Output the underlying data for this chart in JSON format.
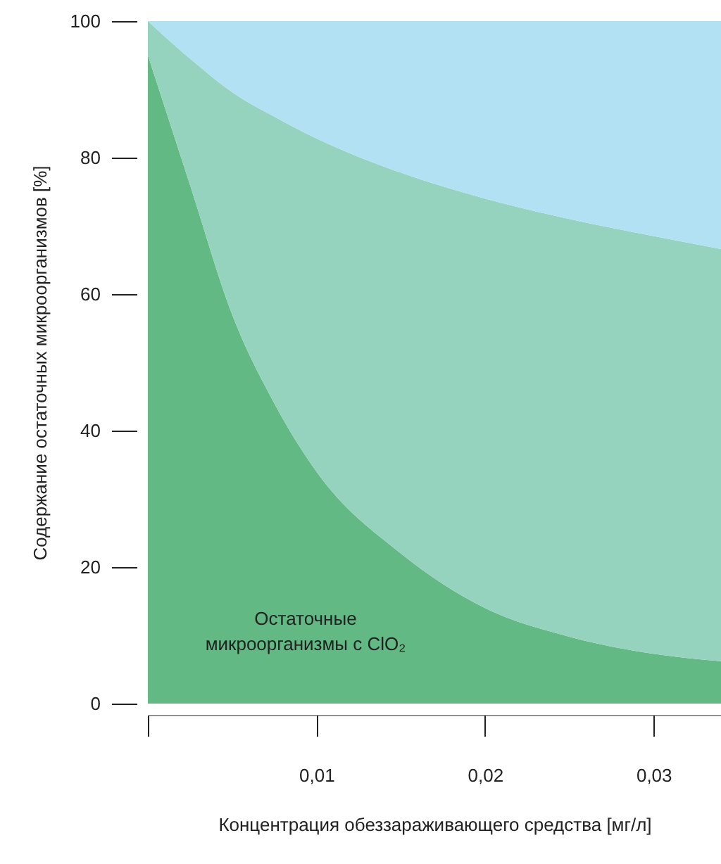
{
  "chart_data": {
    "type": "area",
    "stacked": true,
    "xlabel": "Концентрация обеззараживающего средства [мг/л]",
    "ylabel": "Содержание остаточных микроорганизмов [%]",
    "x": [
      0,
      0.0025,
      0.005,
      0.0075,
      0.01,
      0.015,
      0.02,
      0.025,
      0.03,
      0.034
    ],
    "series": [
      {
        "color": "#62b983",
        "values": [
          95,
          76,
          57,
          44,
          34,
          22,
          14,
          9.8,
          7.3,
          6.2
        ]
      },
      {
        "color": "#96d3be",
        "values": [
          5,
          18.5,
          32.6,
          42,
          48.8,
          55.8,
          60,
          61.2,
          61.2,
          60.4
        ]
      },
      {
        "color": "#b2e1f3",
        "values": [
          0,
          5.5,
          10.4,
          14,
          17.2,
          22.2,
          26,
          29,
          31.5,
          33.4
        ]
      }
    ],
    "xlim": [
      0,
      0.034
    ],
    "ylim": [
      0,
      100
    ],
    "xticks": [
      {
        "value": 0,
        "label": null
      },
      {
        "value": 0.01,
        "label": "0,01"
      },
      {
        "value": 0.02,
        "label": "0,02"
      },
      {
        "value": 0.03,
        "label": "0,03"
      }
    ],
    "yticks": [
      0,
      20,
      40,
      60,
      80,
      100
    ],
    "grid": false,
    "annotations": [
      "Остаточные микроорганизмы с ClO₂"
    ]
  }
}
